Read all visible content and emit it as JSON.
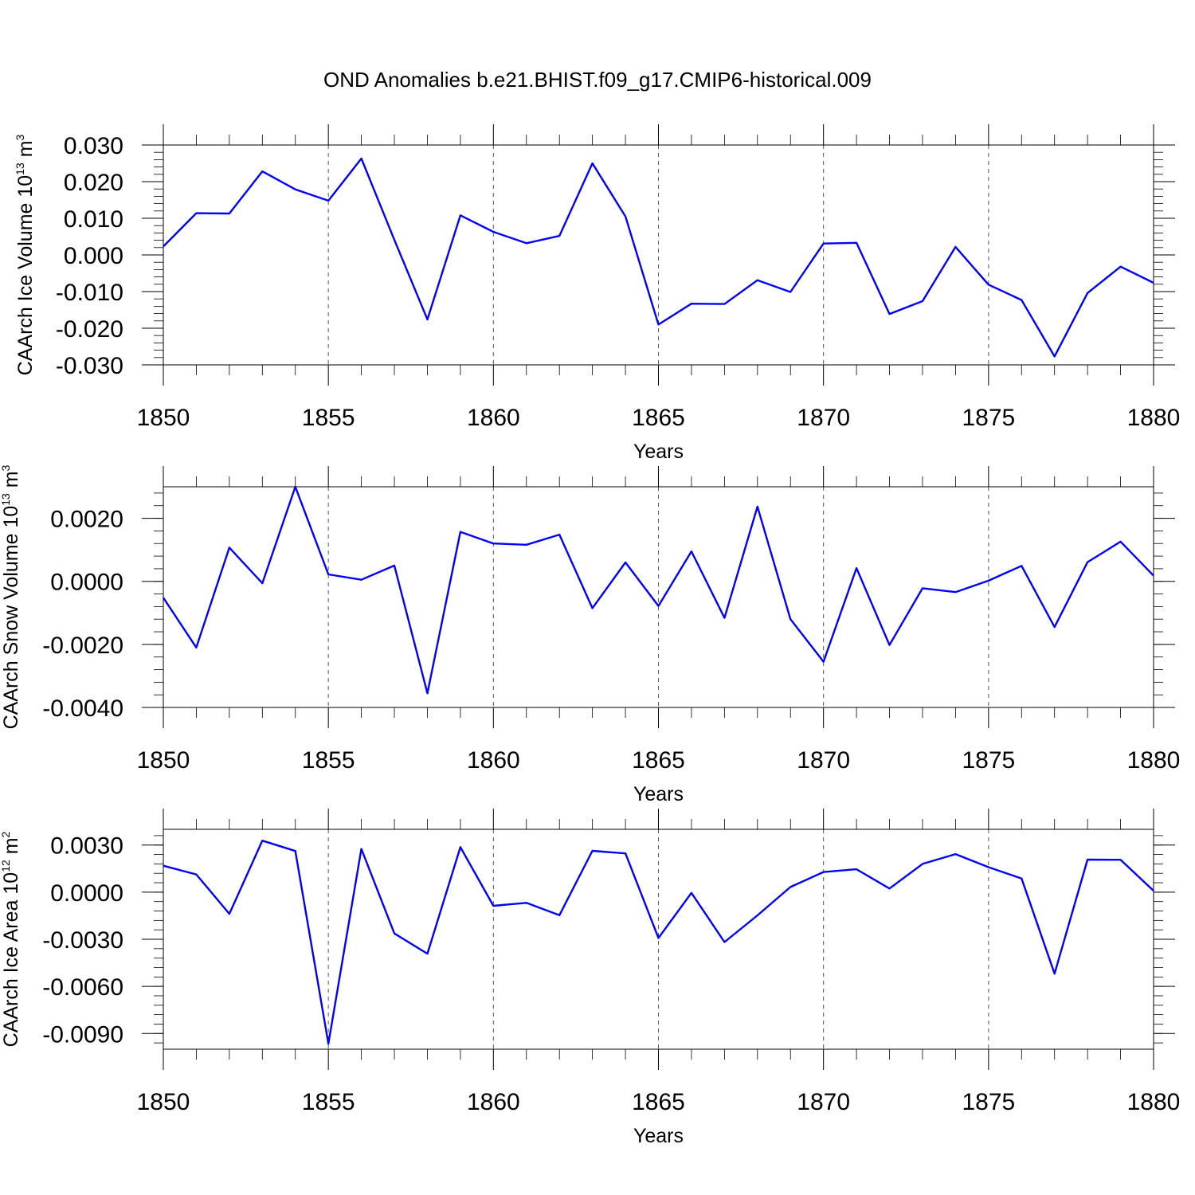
{
  "title": "OND Anomalies b.e21.BHIST.f09_g17.CMIP6-historical.009",
  "chart_data": [
    {
      "type": "line",
      "ylabel": {
        "text": "CAArch Ice Volume 10",
        "sup": "13",
        "unit": " m",
        "unit_sup": "3"
      },
      "xlabel": "Years",
      "xlim": [
        1850,
        1880
      ],
      "ylim": [
        -0.03,
        0.03
      ],
      "color": "#0000ff",
      "x_ticks": [
        "1850",
        "1855",
        "1860",
        "1865",
        "1870",
        "1875",
        "1880"
      ],
      "y_ticks": [
        {
          "v": 0.03,
          "label": "0.030"
        },
        {
          "v": 0.02,
          "label": "0.020"
        },
        {
          "v": 0.01,
          "label": "0.010"
        },
        {
          "v": 0.0,
          "label": "0.000"
        },
        {
          "v": -0.01,
          "label": "-0.010"
        },
        {
          "v": -0.02,
          "label": "-0.020"
        },
        {
          "v": -0.03,
          "label": "-0.030"
        }
      ],
      "x": [
        1850,
        1851,
        1852,
        1853,
        1854,
        1855,
        1856,
        1857,
        1858,
        1859,
        1860,
        1861,
        1862,
        1863,
        1864,
        1865,
        1866,
        1867,
        1868,
        1869,
        1870,
        1871,
        1872,
        1873,
        1874,
        1875,
        1876,
        1877,
        1878,
        1879,
        1880
      ],
      "values": [
        0.0023,
        0.0114,
        0.0113,
        0.0228,
        0.0179,
        0.0148,
        0.0263,
        0.0041,
        -0.0176,
        0.0108,
        0.0063,
        0.0032,
        0.0052,
        0.025,
        0.0105,
        -0.019,
        -0.0133,
        -0.0134,
        -0.0069,
        -0.0101,
        0.0031,
        0.0033,
        -0.0161,
        -0.0126,
        0.0022,
        -0.0081,
        -0.0123,
        -0.0277,
        -0.0104,
        -0.0032,
        -0.0076
      ]
    },
    {
      "type": "line",
      "ylabel": {
        "text": "CAArch Snow Volume 10",
        "sup": "13",
        "unit": " m",
        "unit_sup": "3"
      },
      "xlabel": "Years",
      "xlim": [
        1850,
        1880
      ],
      "ylim": [
        -0.004,
        0.003
      ],
      "color": "#0000ff",
      "x_ticks": [
        "1850",
        "1855",
        "1860",
        "1865",
        "1870",
        "1875",
        "1880"
      ],
      "y_ticks": [
        {
          "v": 0.002,
          "label": "0.0020"
        },
        {
          "v": 0.0,
          "label": "0.0000"
        },
        {
          "v": -0.002,
          "label": "-0.0020"
        },
        {
          "v": -0.004,
          "label": "-0.0040"
        }
      ],
      "x": [
        1850,
        1851,
        1852,
        1853,
        1854,
        1855,
        1856,
        1857,
        1858,
        1859,
        1860,
        1861,
        1862,
        1863,
        1864,
        1865,
        1866,
        1867,
        1868,
        1869,
        1870,
        1871,
        1872,
        1873,
        1874,
        1875,
        1876,
        1877,
        1878,
        1879,
        1880
      ],
      "values": [
        -0.00052,
        -0.0021,
        0.00107,
        -6e-05,
        0.003,
        0.00022,
        5e-05,
        0.0005,
        -0.00355,
        0.00157,
        0.0012,
        0.00116,
        0.00148,
        -0.00085,
        0.0006,
        -0.00078,
        0.00095,
        -0.00116,
        0.00237,
        -0.0012,
        -0.00255,
        0.00042,
        -0.00202,
        -0.00022,
        -0.00034,
        2e-05,
        0.00049,
        -0.00145,
        0.00061,
        0.00126,
        0.00018
      ]
    },
    {
      "type": "line",
      "ylabel": {
        "text": "CAArch Ice Area 10",
        "sup": "12",
        "unit": " m",
        "unit_sup": "2"
      },
      "xlabel": "Years",
      "xlim": [
        1850,
        1880
      ],
      "ylim": [
        -0.01,
        0.004
      ],
      "color": "#0000ff",
      "x_ticks": [
        "1850",
        "1855",
        "1860",
        "1865",
        "1870",
        "1875",
        "1880"
      ],
      "y_ticks": [
        {
          "v": 0.003,
          "label": "0.0030"
        },
        {
          "v": 0.0,
          "label": "0.0000"
        },
        {
          "v": -0.003,
          "label": "-0.0030"
        },
        {
          "v": -0.006,
          "label": "-0.0060"
        },
        {
          "v": -0.009,
          "label": "-0.0090"
        }
      ],
      "x": [
        1850,
        1851,
        1852,
        1853,
        1854,
        1855,
        1856,
        1857,
        1858,
        1859,
        1860,
        1861,
        1862,
        1863,
        1864,
        1865,
        1866,
        1867,
        1868,
        1869,
        1870,
        1871,
        1872,
        1873,
        1874,
        1875,
        1876,
        1877,
        1878,
        1879,
        1880
      ],
      "values": [
        0.00168,
        0.00113,
        -0.00138,
        0.00328,
        0.00262,
        -0.00965,
        0.00275,
        -0.00263,
        -0.00392,
        0.00287,
        -0.00087,
        -0.00068,
        -0.00147,
        0.00263,
        0.00247,
        -0.00292,
        -5e-05,
        -0.00318,
        -0.00148,
        0.00033,
        0.00128,
        0.00146,
        0.00023,
        0.0018,
        0.00242,
        0.00159,
        0.00087,
        -0.00519,
        0.00207,
        0.00206,
        9e-05
      ]
    }
  ]
}
